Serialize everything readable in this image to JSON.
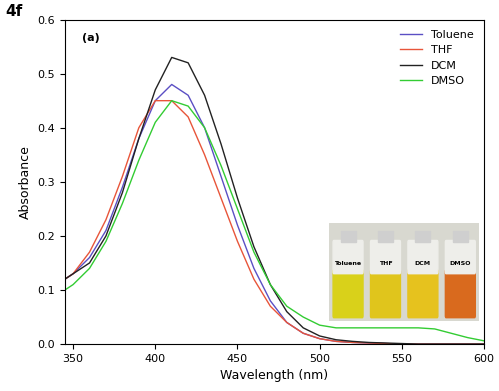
{
  "chart_data": {
    "type": "line",
    "title": "4f",
    "annotations": [
      "(a)"
    ],
    "x_label": "Wavelength (nm)",
    "y_label": "Absorbance",
    "x": [
      345,
      350,
      360,
      370,
      380,
      390,
      400,
      410,
      420,
      430,
      440,
      450,
      460,
      470,
      480,
      490,
      500,
      510,
      520,
      530,
      540,
      550,
      560,
      570,
      580,
      590,
      600
    ],
    "series": [
      {
        "name": "Toluene",
        "color": "#5b4fc4",
        "values": [
          0.12,
          0.13,
          0.16,
          0.21,
          0.29,
          0.38,
          0.45,
          0.48,
          0.46,
          0.4,
          0.31,
          0.22,
          0.14,
          0.08,
          0.04,
          0.02,
          0.01,
          0.005,
          0.003,
          0.002,
          0.001,
          0,
          0,
          0,
          0,
          0,
          0
        ]
      },
      {
        "name": "THF",
        "color": "#e8553a",
        "values": [
          0.12,
          0.13,
          0.17,
          0.23,
          0.31,
          0.4,
          0.45,
          0.45,
          0.42,
          0.35,
          0.27,
          0.19,
          0.12,
          0.07,
          0.04,
          0.02,
          0.01,
          0.005,
          0.003,
          0.002,
          0.001,
          0,
          0,
          0,
          0,
          0,
          0
        ]
      },
      {
        "name": "DCM",
        "color": "#222222",
        "values": [
          0.12,
          0.13,
          0.15,
          0.2,
          0.28,
          0.38,
          0.47,
          0.53,
          0.52,
          0.46,
          0.37,
          0.27,
          0.18,
          0.11,
          0.06,
          0.03,
          0.015,
          0.008,
          0.005,
          0.003,
          0.002,
          0.001,
          0,
          0,
          0,
          0,
          0
        ]
      },
      {
        "name": "DMSO",
        "color": "#33cc33",
        "values": [
          0.1,
          0.11,
          0.14,
          0.19,
          0.26,
          0.34,
          0.41,
          0.45,
          0.44,
          0.4,
          0.33,
          0.25,
          0.17,
          0.11,
          0.07,
          0.05,
          0.035,
          0.03,
          0.03,
          0.03,
          0.03,
          0.03,
          0.03,
          0.028,
          0.02,
          0.012,
          0.006
        ]
      }
    ],
    "xlim": [
      345,
      600
    ],
    "xticks": [
      350,
      400,
      450,
      500,
      550,
      600
    ],
    "ylim": [
      0,
      0.6
    ],
    "yticks": [
      {
        "value": 0,
        "label": "0.0"
      },
      0.1,
      0.2,
      0.3,
      0.4,
      0.5,
      0.6
    ],
    "legend": "upper right",
    "grid": false
  }
}
